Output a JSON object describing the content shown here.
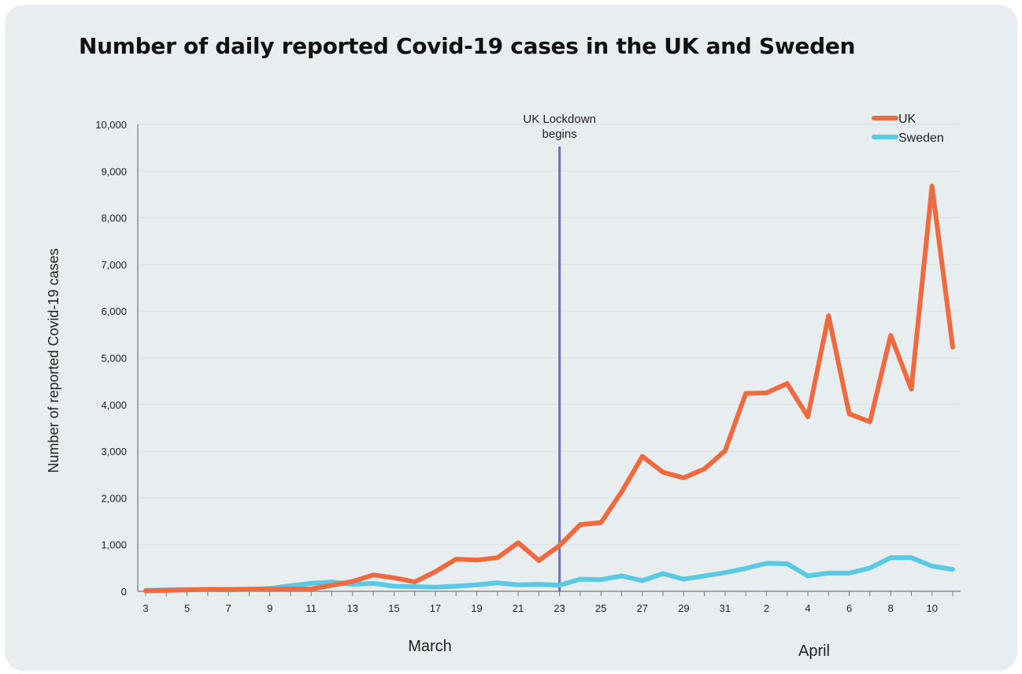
{
  "chart_data": {
    "type": "line",
    "title": "Number of daily reported Covid-19 cases in the UK and Sweden",
    "ylabel": "Number of reported Covid-19 cases",
    "xlabel": "",
    "ylim": [
      0,
      10000
    ],
    "yticks": [
      0,
      1000,
      2000,
      3000,
      4000,
      5000,
      6000,
      7000,
      8000,
      9000,
      10000
    ],
    "ytick_labels": [
      "0",
      "1,000",
      "2,000",
      "3,000",
      "4,000",
      "5,000",
      "6,000",
      "7,000",
      "8,000",
      "9,000",
      "10,000"
    ],
    "x": [
      "Mar 3",
      "Mar 4",
      "Mar 5",
      "Mar 6",
      "Mar 7",
      "Mar 8",
      "Mar 9",
      "Mar 10",
      "Mar 11",
      "Mar 12",
      "Mar 13",
      "Mar 14",
      "Mar 15",
      "Mar 16",
      "Mar 17",
      "Mar 18",
      "Mar 19",
      "Mar 20",
      "Mar 21",
      "Mar 22",
      "Mar 23",
      "Mar 24",
      "Mar 25",
      "Mar 26",
      "Mar 27",
      "Mar 28",
      "Mar 29",
      "Mar 30",
      "Mar 31",
      "Apr 1",
      "Apr 2",
      "Apr 3",
      "Apr 4",
      "Apr 5",
      "Apr 6",
      "Apr 7",
      "Apr 8",
      "Apr 9",
      "Apr 10",
      "Apr 11"
    ],
    "xtick_labels": [
      "3",
      "",
      "5",
      "",
      "7",
      "",
      "9",
      "",
      "11",
      "",
      "13",
      "",
      "15",
      "",
      "17",
      "",
      "19",
      "",
      "21",
      "",
      "23",
      "",
      "25",
      "",
      "27",
      "",
      "29",
      "",
      "31",
      "",
      "2",
      "",
      "4",
      "",
      "6",
      "",
      "8",
      "",
      "10",
      ""
    ],
    "month_labels": [
      "March",
      "April"
    ],
    "series": [
      {
        "name": "UK",
        "color": "#ef6a3f",
        "values": [
          10,
          20,
          30,
          40,
          40,
          45,
          50,
          50,
          50,
          130,
          210,
          350,
          290,
          200,
          420,
          690,
          670,
          720,
          1040,
          660,
          980,
          1430,
          1470,
          2130,
          2890,
          2550,
          2430,
          2620,
          3010,
          4240,
          4250,
          4450,
          3740,
          5900,
          3800,
          3630,
          5480,
          4330,
          8680,
          5230
        ]
      },
      {
        "name": "Sweden",
        "color": "#5bc8e4",
        "values": [
          20,
          30,
          40,
          40,
          30,
          40,
          60,
          120,
          170,
          200,
          150,
          170,
          110,
          100,
          90,
          110,
          140,
          180,
          140,
          150,
          130,
          260,
          250,
          330,
          230,
          380,
          260,
          330,
          400,
          490,
          600,
          590,
          330,
          390,
          390,
          500,
          720,
          720,
          540,
          470
        ]
      }
    ],
    "annotations": [
      {
        "text_line1": "UK Lockdown",
        "text_line2": "begins",
        "x": "Mar 23",
        "color": "#6f68d4"
      }
    ],
    "legend_position": "top-right",
    "grid": true
  }
}
